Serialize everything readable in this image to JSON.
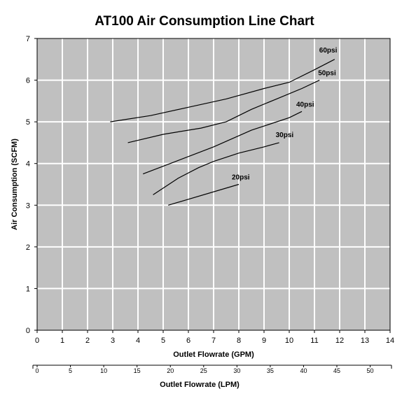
{
  "chart_data": {
    "type": "line",
    "title": "AT100 Air Consumption Line Chart",
    "xlabel": "Outlet Flowrate (GPM)",
    "ylabel": "Air Consumption (SCFM)",
    "secondary_xlabel": "Outlet Flowrate (LPM)",
    "xlim": [
      0,
      14
    ],
    "ylim": [
      0,
      7
    ],
    "xticks": [
      "0",
      "1",
      "2",
      "3",
      "4",
      "5",
      "6",
      "7",
      "8",
      "9",
      "10",
      "11",
      "12",
      "13",
      "14"
    ],
    "yticks": [
      "0",
      "1",
      "2",
      "3",
      "4",
      "5",
      "6",
      "7"
    ],
    "secondary_xticks": [
      "0",
      "5",
      "10",
      "15",
      "20",
      "25",
      "30",
      "35",
      "40",
      "45",
      "50"
    ],
    "grid": true,
    "background": "#c0c0c0",
    "gridline_color": "#ffffff",
    "line_color": "#000000",
    "series": [
      {
        "name": "20psi",
        "points": [
          [
            5.2,
            3.0
          ],
          [
            8.0,
            3.5
          ]
        ]
      },
      {
        "name": "30psi",
        "points": [
          [
            4.6,
            3.25
          ],
          [
            5.6,
            3.65
          ],
          [
            6.4,
            3.9
          ],
          [
            7.0,
            4.05
          ],
          [
            8.0,
            4.25
          ],
          [
            9.0,
            4.4
          ],
          [
            9.6,
            4.5
          ]
        ]
      },
      {
        "name": "40psi",
        "points": [
          [
            4.2,
            3.75
          ],
          [
            5.5,
            4.05
          ],
          [
            7.0,
            4.4
          ],
          [
            8.5,
            4.8
          ],
          [
            10.0,
            5.1
          ],
          [
            10.5,
            5.25
          ]
        ]
      },
      {
        "name": "50psi",
        "points": [
          [
            3.6,
            4.5
          ],
          [
            5.0,
            4.7
          ],
          [
            6.5,
            4.85
          ],
          [
            7.5,
            5.0
          ],
          [
            8.5,
            5.3
          ],
          [
            9.5,
            5.55
          ],
          [
            10.5,
            5.8
          ],
          [
            11.2,
            6.0
          ]
        ]
      },
      {
        "name": "60psi",
        "points": [
          [
            2.9,
            5.0
          ],
          [
            4.5,
            5.15
          ],
          [
            6.0,
            5.35
          ],
          [
            7.5,
            5.55
          ],
          [
            9.0,
            5.8
          ],
          [
            10.0,
            5.95
          ],
          [
            11.0,
            6.25
          ],
          [
            11.8,
            6.5
          ]
        ]
      }
    ]
  }
}
